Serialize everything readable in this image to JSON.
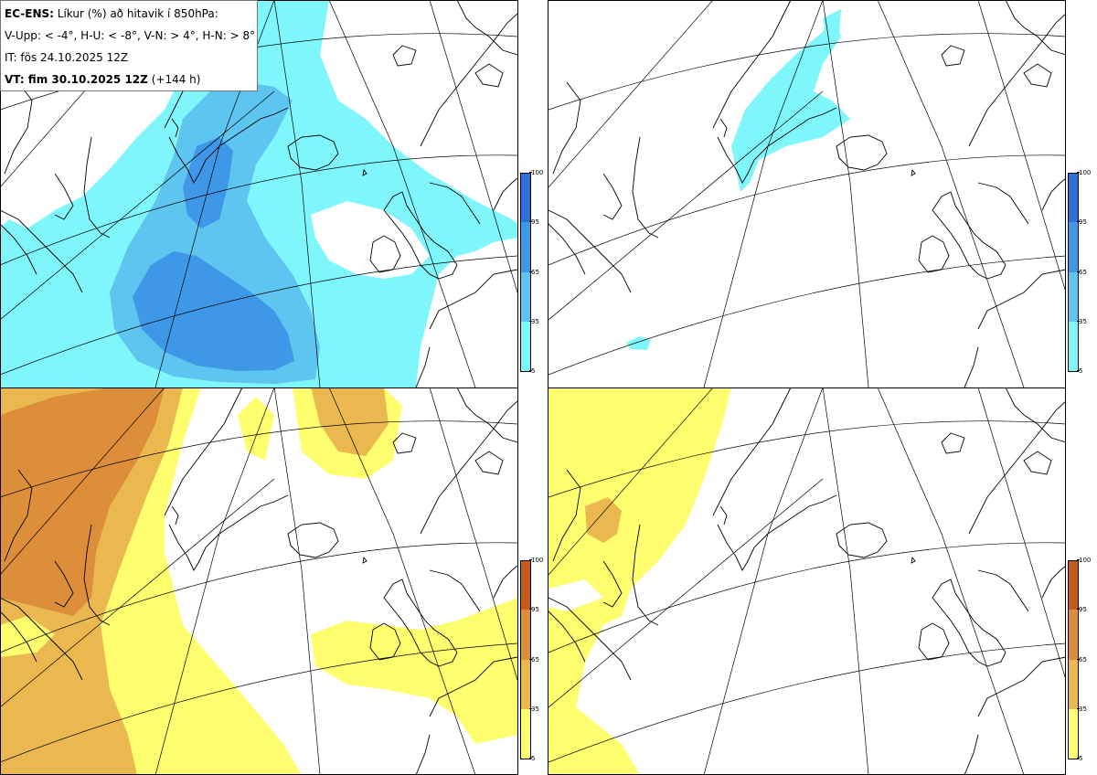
{
  "info": {
    "line1_bold": "EC-ENS:",
    "line1_text": "Líkur (%) að hitavik í 850hPa:",
    "line2": "V-Upp: < -4°, H-U: < -8°, V-N: > 4°, H-N: > 8°",
    "line3": "IT: fös 24.10.2025 12Z",
    "line4_bold": "VT: fim 30.10.2025 12Z",
    "line4_text": "(+144 h)"
  },
  "panels": [
    {
      "id": "V-Upp",
      "scheme": "blue"
    },
    {
      "id": "H-U",
      "scheme": "blue"
    },
    {
      "id": "V-N",
      "scheme": "orange"
    },
    {
      "id": "H-N",
      "scheme": "orange"
    }
  ],
  "colorbar": {
    "ticks": [
      "100",
      "95",
      "65",
      "35",
      "5"
    ],
    "blue_colors": [
      "#2f6fd6",
      "#3f97e8",
      "#5ec4f0",
      "#7ff6fb"
    ],
    "orange_colors": [
      "#c45a1c",
      "#dc8e3a",
      "#eab84f",
      "#fefe6e"
    ]
  },
  "colors": {
    "blue_light": "#7ff6fb",
    "blue_mid": "#5ec4f0",
    "blue_dark": "#3f97e8",
    "orange_light": "#fefe6e",
    "orange_mid": "#eab84f",
    "orange_dark": "#dc8e3a",
    "orange_darkest": "#c45a1c",
    "coast": "#000000",
    "grid": "#000000"
  }
}
